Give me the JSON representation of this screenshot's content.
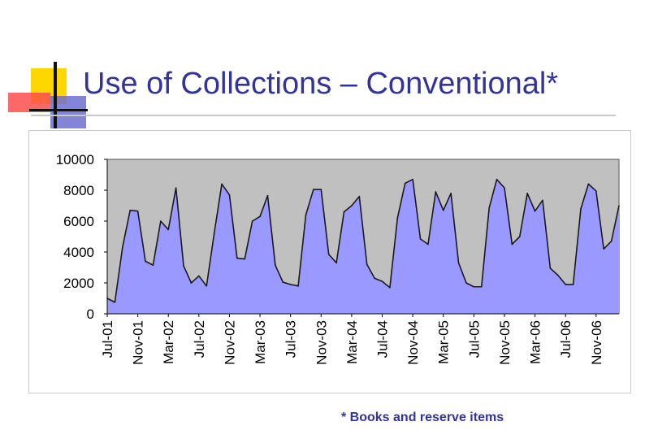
{
  "slide": {
    "title": "Use of Collections – Conventional*",
    "footnote": "* Books and reserve items"
  },
  "colors": {
    "title_text": "#333399",
    "plot_background": "#c0c0c0",
    "area_fill": "#9999ff",
    "area_line": "#1a1a1a",
    "logo_yellow": "#ffd700",
    "logo_red": "#ff4444",
    "logo_blue": "#6666cc"
  },
  "chart_data": {
    "type": "area",
    "title": "",
    "xlabel": "",
    "ylabel": "",
    "ylim": [
      0,
      10000
    ],
    "yticks": [
      "0",
      "2000",
      "4000",
      "6000",
      "8000",
      "10000"
    ],
    "grid": false,
    "legend": "none",
    "x": [
      "Jul-01",
      "Aug-01",
      "Sep-01",
      "Oct-01",
      "Nov-01",
      "Dec-01",
      "Jan-02",
      "Feb-02",
      "Mar-02",
      "Apr-02",
      "May-02",
      "Jun-02",
      "Jul-02",
      "Aug-02",
      "Sep-02",
      "Oct-02",
      "Nov-02",
      "Dec-02",
      "Jan-03",
      "Feb-03",
      "Mar-03",
      "Apr-03",
      "May-03",
      "Jun-03",
      "Jul-03",
      "Aug-03",
      "Sep-03",
      "Oct-03",
      "Nov-03",
      "Dec-03",
      "Jan-04",
      "Feb-04",
      "Mar-04",
      "Apr-04",
      "May-04",
      "Jun-04",
      "Jul-04",
      "Aug-04",
      "Sep-04",
      "Oct-04",
      "Nov-04",
      "Dec-04",
      "Jan-05",
      "Feb-05",
      "Mar-05",
      "Apr-05",
      "May-05",
      "Jun-05",
      "Jul-05",
      "Aug-05",
      "Sep-05",
      "Oct-05",
      "Nov-05",
      "Dec-05",
      "Jan-06",
      "Feb-06",
      "Mar-06",
      "Apr-06",
      "May-06",
      "Jun-06",
      "Jul-06",
      "Aug-06",
      "Sep-06",
      "Oct-06",
      "Nov-06",
      "Dec-06",
      "Jan-07",
      "Feb-07"
    ],
    "xticks_shown": [
      "Jul-01",
      "Nov-01",
      "Mar-02",
      "Jul-02",
      "Nov-02",
      "Mar-03",
      "Jul-03",
      "Nov-03",
      "Mar-04",
      "Jul-04",
      "Nov-04",
      "Mar-05",
      "Jul-05",
      "Nov-05",
      "Mar-06",
      "Jul-06",
      "Nov-06"
    ],
    "series": [
      {
        "values": [
          1000,
          750,
          4300,
          6700,
          6650,
          3400,
          3150,
          6000,
          5450,
          8150,
          3100,
          2000,
          2450,
          1800,
          5200,
          8400,
          7700,
          3600,
          3550,
          6000,
          6300,
          7650,
          3150,
          2050,
          1900,
          1800,
          6400,
          8050,
          8050,
          3850,
          3300,
          6600,
          7000,
          7600,
          3200,
          2300,
          2100,
          1700,
          6200,
          8450,
          8700,
          4850,
          4500,
          7900,
          6700,
          7800,
          3300,
          2000,
          1750,
          1750,
          6850,
          8700,
          8150,
          4500,
          5000,
          7800,
          6650,
          7350,
          2950,
          2500,
          1900,
          1900,
          6800,
          8400,
          7950,
          4200,
          4700,
          7000
        ]
      }
    ]
  }
}
